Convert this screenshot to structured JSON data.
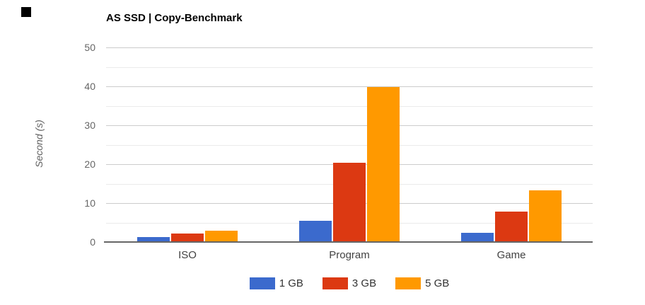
{
  "chart_data": {
    "type": "bar",
    "title": "AS SSD | Copy-Benchmark",
    "xlabel": "",
    "ylabel": "Second (s)",
    "categories": [
      "ISO",
      "Program",
      "Game"
    ],
    "series": [
      {
        "name": "1 GB",
        "color": "#3B6ACD",
        "values": [
          1.3,
          5.5,
          2.4
        ]
      },
      {
        "name": "3 GB",
        "color": "#DC3912",
        "values": [
          2.2,
          20.3,
          7.8
        ]
      },
      {
        "name": "5 GB",
        "color": "#FF9900",
        "values": [
          2.9,
          39.9,
          13.2
        ]
      }
    ],
    "ylim": [
      0,
      50
    ],
    "yticks": [
      0,
      10,
      20,
      30,
      40,
      50
    ],
    "minor_tick_step": 5,
    "grid": true,
    "legend_position": "bottom",
    "colors": {
      "background": "#FFFFFF",
      "title_text": "#000000",
      "axis_line": "#666666",
      "gridline_major": "#CCCCCC",
      "gridline_minor": "#EBEBEB",
      "tick_text": "#666666",
      "category_text": "#424242",
      "legend_text": "#333333",
      "axis_title_text": "#616161",
      "marker_square": "#000000"
    }
  }
}
